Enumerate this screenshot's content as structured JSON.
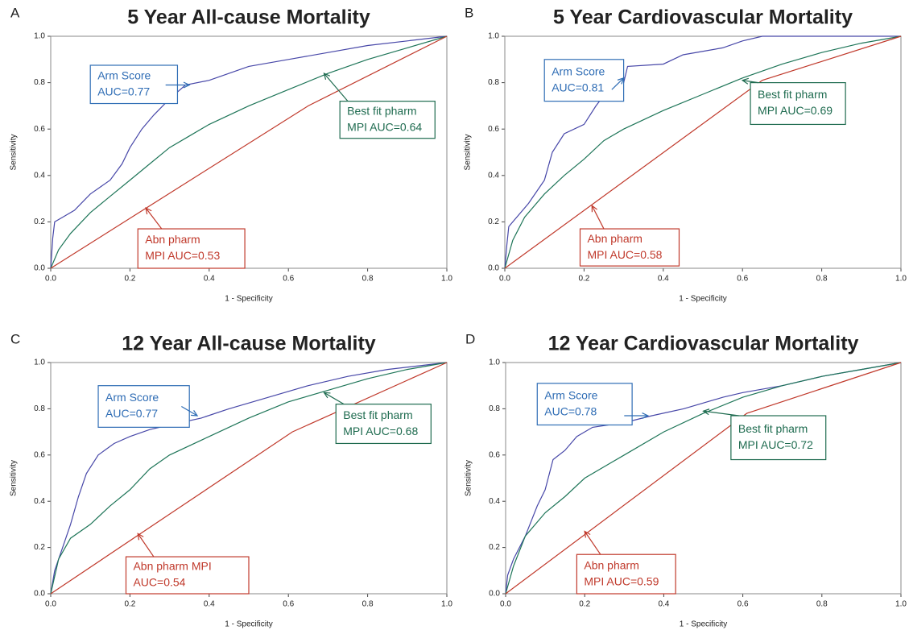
{
  "chart_data": [
    {
      "type": "line",
      "panel_label": "A",
      "title": "5 Year All-cause Mortality",
      "xlabel": "1 - Specificity",
      "ylabel": "Sensitivity",
      "xlim": [
        0,
        1
      ],
      "ylim": [
        0,
        1
      ],
      "xticks": [
        {
          "value": 0,
          "label": "0.0"
        },
        0.2,
        0.4,
        0.6,
        0.8,
        {
          "value": 1,
          "label": "1.0"
        }
      ],
      "yticks": [
        {
          "value": 0,
          "label": "0.0"
        },
        0.2,
        0.4,
        0.6,
        0.8,
        {
          "value": 1,
          "label": "1.0"
        }
      ],
      "series": [
        {
          "color": "#4747a8",
          "x": [
            0,
            0.005,
            0.01,
            0.03,
            0.06,
            0.1,
            0.15,
            0.18,
            0.2,
            0.23,
            0.26,
            0.3,
            0.34,
            0.4,
            0.45,
            0.5,
            0.6,
            0.7,
            0.8,
            0.9,
            1
          ],
          "values": [
            0,
            0.13,
            0.2,
            0.22,
            0.25,
            0.32,
            0.38,
            0.45,
            0.52,
            0.6,
            0.66,
            0.73,
            0.79,
            0.81,
            0.84,
            0.87,
            0.9,
            0.93,
            0.96,
            0.98,
            1
          ]
        },
        {
          "color": "#1e7558",
          "x": [
            0,
            0.02,
            0.05,
            0.1,
            0.15,
            0.2,
            0.25,
            0.3,
            0.35,
            0.4,
            0.5,
            0.6,
            0.7,
            0.8,
            0.9,
            1
          ],
          "values": [
            0,
            0.08,
            0.15,
            0.24,
            0.31,
            0.38,
            0.45,
            0.52,
            0.57,
            0.62,
            0.7,
            0.77,
            0.84,
            0.9,
            0.95,
            1
          ]
        },
        {
          "color": "#c0392b",
          "x": [
            0,
            0.65,
            1
          ],
          "values": [
            0,
            0.7,
            1
          ]
        }
      ],
      "annotations": [
        {
          "lines": [
            "Arm Score",
            "AUC=0.77"
          ],
          "color": "#2f6db5"
        },
        {
          "lines": [
            "Best fit pharm",
            "MPI AUC=0.64"
          ],
          "color": "#1e6b4f"
        },
        {
          "lines": [
            "Abn pharm",
            "MPI AUC=0.53"
          ],
          "color": "#c0392b"
        }
      ]
    },
    {
      "type": "line",
      "panel_label": "B",
      "title": "5 Year Cardiovascular Mortality",
      "xlabel": "1 - Specificity",
      "ylabel": "Sensitivity",
      "xlim": [
        0,
        1
      ],
      "ylim": [
        0,
        1
      ],
      "xticks": [
        {
          "value": 0,
          "label": "0.0"
        },
        0.2,
        0.4,
        0.6,
        0.8,
        {
          "value": 1,
          "label": "1.0"
        }
      ],
      "yticks": [
        {
          "value": 0,
          "label": "0.0"
        },
        0.2,
        0.4,
        0.6,
        0.8,
        {
          "value": 1,
          "label": "1.0"
        }
      ],
      "series": [
        {
          "color": "#4747a8",
          "x": [
            0,
            0.005,
            0.01,
            0.03,
            0.06,
            0.1,
            0.12,
            0.15,
            0.2,
            0.23,
            0.27,
            0.3,
            0.31,
            0.4,
            0.45,
            0.55,
            0.6,
            0.65,
            1
          ],
          "values": [
            0,
            0.1,
            0.18,
            0.22,
            0.28,
            0.38,
            0.5,
            0.58,
            0.62,
            0.7,
            0.79,
            0.8,
            0.87,
            0.88,
            0.92,
            0.95,
            0.98,
            1,
            1
          ]
        },
        {
          "color": "#1e7558",
          "x": [
            0,
            0.02,
            0.05,
            0.1,
            0.15,
            0.2,
            0.25,
            0.3,
            0.4,
            0.5,
            0.6,
            0.7,
            0.8,
            0.9,
            1
          ],
          "values": [
            0,
            0.12,
            0.22,
            0.32,
            0.4,
            0.47,
            0.55,
            0.6,
            0.68,
            0.75,
            0.82,
            0.88,
            0.93,
            0.97,
            1
          ]
        },
        {
          "color": "#c0392b",
          "x": [
            0,
            0.65,
            1
          ],
          "values": [
            0,
            0.81,
            1
          ]
        }
      ],
      "annotations": [
        {
          "lines": [
            "Arm Score",
            "AUC=0.81"
          ],
          "color": "#2f6db5"
        },
        {
          "lines": [
            "Best fit pharm",
            "MPI AUC=0.69"
          ],
          "color": "#1e6b4f"
        },
        {
          "lines": [
            "Abn pharm",
            "MPI AUC=0.58"
          ],
          "color": "#c0392b"
        }
      ]
    },
    {
      "type": "line",
      "panel_label": "C",
      "title": "12 Year All-cause Mortality",
      "xlabel": "1 - Specificity",
      "ylabel": "Sensitivity",
      "xlim": [
        0,
        1
      ],
      "ylim": [
        0,
        1
      ],
      "xticks": [
        {
          "value": 0,
          "label": "0.0"
        },
        0.2,
        0.4,
        0.6,
        0.8,
        {
          "value": 1,
          "label": "1.0"
        }
      ],
      "yticks": [
        {
          "value": 0,
          "label": "0.0"
        },
        0.2,
        0.4,
        0.6,
        0.8,
        {
          "value": 1,
          "label": "1.0"
        }
      ],
      "series": [
        {
          "color": "#4747a8",
          "x": [
            0,
            0.01,
            0.03,
            0.05,
            0.07,
            0.09,
            0.12,
            0.16,
            0.2,
            0.25,
            0.3,
            0.38,
            0.45,
            0.55,
            0.65,
            0.75,
            0.85,
            1
          ],
          "values": [
            0,
            0.1,
            0.2,
            0.3,
            0.42,
            0.52,
            0.6,
            0.65,
            0.68,
            0.71,
            0.73,
            0.76,
            0.8,
            0.85,
            0.9,
            0.94,
            0.97,
            1
          ]
        },
        {
          "color": "#1e7558",
          "x": [
            0,
            0.02,
            0.05,
            0.1,
            0.15,
            0.2,
            0.25,
            0.3,
            0.4,
            0.5,
            0.6,
            0.7,
            0.8,
            0.9,
            1
          ],
          "values": [
            0,
            0.15,
            0.24,
            0.3,
            0.38,
            0.45,
            0.54,
            0.6,
            0.68,
            0.76,
            0.83,
            0.88,
            0.93,
            0.97,
            1
          ]
        },
        {
          "color": "#c0392b",
          "x": [
            0,
            0.61,
            1
          ],
          "values": [
            0,
            0.7,
            1
          ]
        }
      ],
      "annotations": [
        {
          "lines": [
            "Arm Score",
            "AUC=0.77"
          ],
          "color": "#2f6db5"
        },
        {
          "lines": [
            "Best fit pharm",
            "MPI AUC=0.68"
          ],
          "color": "#1e6b4f"
        },
        {
          "lines": [
            "Abn pharm MPI",
            "AUC=0.54"
          ],
          "color": "#c0392b"
        }
      ]
    },
    {
      "type": "line",
      "panel_label": "D",
      "title": "12 Year Cardiovascular Mortality",
      "xlabel": "1 - Specificity",
      "ylabel": "Sensitivity",
      "xlim": [
        0,
        1
      ],
      "ylim": [
        0,
        1
      ],
      "xticks": [
        {
          "value": 0,
          "label": "0.0"
        },
        0.2,
        0.4,
        0.6,
        0.8,
        {
          "value": 1,
          "label": "1.0"
        }
      ],
      "yticks": [
        {
          "value": 0,
          "label": "0.0"
        },
        0.2,
        0.4,
        0.6,
        0.8,
        {
          "value": 1,
          "label": "1.0"
        }
      ],
      "series": [
        {
          "color": "#4747a8",
          "x": [
            0,
            0.005,
            0.02,
            0.05,
            0.08,
            0.1,
            0.12,
            0.15,
            0.18,
            0.22,
            0.3,
            0.37,
            0.45,
            0.55,
            0.6,
            0.7,
            0.8,
            0.9,
            1
          ],
          "values": [
            0,
            0.08,
            0.15,
            0.25,
            0.38,
            0.45,
            0.58,
            0.62,
            0.68,
            0.72,
            0.74,
            0.77,
            0.8,
            0.85,
            0.87,
            0.9,
            0.94,
            0.97,
            1
          ]
        },
        {
          "color": "#1e7558",
          "x": [
            0,
            0.02,
            0.05,
            0.1,
            0.15,
            0.2,
            0.3,
            0.4,
            0.5,
            0.6,
            0.7,
            0.8,
            0.9,
            1
          ],
          "values": [
            0,
            0.12,
            0.25,
            0.35,
            0.42,
            0.5,
            0.6,
            0.7,
            0.78,
            0.85,
            0.9,
            0.94,
            0.97,
            1
          ]
        },
        {
          "color": "#c0392b",
          "x": [
            0,
            0.61,
            1
          ],
          "values": [
            0,
            0.78,
            1
          ]
        }
      ],
      "annotations": [
        {
          "lines": [
            "Arm Score",
            "AUC=0.78"
          ],
          "color": "#2f6db5"
        },
        {
          "lines": [
            "Best fit pharm",
            "MPI AUC=0.72"
          ],
          "color": "#1e6b4f"
        },
        {
          "lines": [
            "Abn pharm",
            "MPI AUC=0.59"
          ],
          "color": "#c0392b"
        }
      ]
    }
  ]
}
